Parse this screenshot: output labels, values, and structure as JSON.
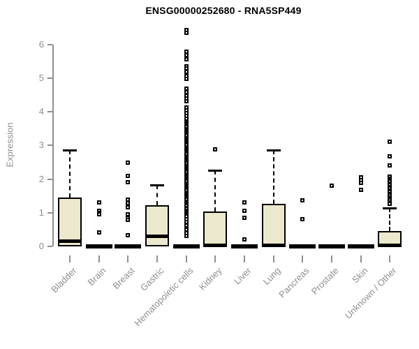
{
  "title": "ENSG00000252680 - RNA5SP449",
  "y_axis": {
    "label": "Expression",
    "ticks": [
      0,
      1,
      2,
      3,
      4,
      5,
      6
    ],
    "min": 0,
    "max": 6
  },
  "colors": {
    "box_fill": "#ece8cd",
    "box_border": "#000000",
    "axis": "#8f8f8f",
    "title": "#000000",
    "background": "#ffffff"
  },
  "chart_data": {
    "type": "boxplot",
    "title": "ENSG00000252680 - RNA5SP449",
    "xlabel": "",
    "ylabel": "Expression",
    "ylim": [
      0,
      6.5
    ],
    "grid": false,
    "categories": [
      "Bladder",
      "Brain",
      "Breast",
      "Gastric",
      "Hematopoietic cells",
      "Kidney",
      "Liver",
      "Lung",
      "Pancreas",
      "Prostate",
      "Skin",
      "Unknown / Other"
    ],
    "series": [
      {
        "name": "Bladder",
        "collapsed": false,
        "q1": 0,
        "median": 0.15,
        "q3": 1.45,
        "whisker_low": 0,
        "whisker_high": 2.85,
        "outliers": []
      },
      {
        "name": "Brain",
        "collapsed": true,
        "q1": 0,
        "median": 0,
        "q3": 0,
        "whisker_low": 0,
        "whisker_high": 0,
        "outliers": [
          1.3,
          1.05,
          1.0,
          0.95,
          0.42
        ]
      },
      {
        "name": "Breast",
        "collapsed": true,
        "q1": 0,
        "median": 0,
        "q3": 0,
        "whisker_low": 0,
        "whisker_high": 0,
        "outliers": [
          2.48,
          2.1,
          1.9,
          1.38,
          1.28,
          1.16,
          0.95,
          0.86,
          0.78,
          0.34
        ]
      },
      {
        "name": "Gastric",
        "collapsed": false,
        "q1": 0,
        "median": 0.3,
        "q3": 1.22,
        "whisker_low": 0,
        "whisker_high": 1.83,
        "outliers": []
      },
      {
        "name": "Hematopoietic cells",
        "collapsed": true,
        "q1": 0,
        "median": 0,
        "q3": 0,
        "whisker_low": 0,
        "whisker_high": 0,
        "outliers": [
          6.42,
          6.35,
          5.78,
          5.68,
          5.55,
          5.35,
          5.28,
          5.18,
          5.05,
          4.98,
          4.68,
          4.58,
          4.48,
          4.4,
          4.32,
          4.12,
          4.05,
          3.95,
          3.88,
          3.8,
          3.72,
          3.67,
          3.63,
          3.58,
          3.54,
          3.49,
          3.45,
          3.4,
          3.36,
          3.31,
          3.27,
          3.22,
          3.18,
          3.13,
          3.09,
          3.04,
          3.0,
          2.95,
          2.91,
          2.86,
          2.82,
          2.77,
          2.73,
          2.68,
          2.64,
          2.59,
          2.55,
          2.5,
          2.46,
          2.41,
          2.37,
          2.32,
          2.28,
          2.23,
          2.19,
          2.14,
          2.1,
          2.05,
          2.01,
          1.96,
          1.92,
          1.87,
          1.83,
          1.78,
          1.74,
          1.69,
          1.65,
          1.6,
          1.56,
          1.51,
          1.47,
          1.42,
          1.38,
          1.33,
          1.29,
          1.24,
          1.2,
          1.15,
          1.11,
          1.06,
          1.02,
          0.97,
          0.93,
          0.9,
          0.8,
          0.72,
          0.62,
          0.5,
          0.4,
          0.32
        ]
      },
      {
        "name": "Kidney",
        "collapsed": false,
        "q1": 0,
        "median": 0.03,
        "q3": 1.03,
        "whisker_low": 0,
        "whisker_high": 2.25,
        "outliers": [
          2.88
        ]
      },
      {
        "name": "Liver",
        "collapsed": true,
        "q1": 0,
        "median": 0,
        "q3": 0,
        "whisker_low": 0,
        "whisker_high": 0,
        "outliers": [
          1.3,
          1.05,
          0.85,
          0.2
        ]
      },
      {
        "name": "Lung",
        "collapsed": false,
        "q1": 0,
        "median": 0.04,
        "q3": 1.27,
        "whisker_low": 0,
        "whisker_high": 2.85,
        "outliers": []
      },
      {
        "name": "Pancreas",
        "collapsed": true,
        "q1": 0,
        "median": 0,
        "q3": 0,
        "whisker_low": 0,
        "whisker_high": 0,
        "outliers": [
          1.37,
          0.8
        ]
      },
      {
        "name": "Prostate",
        "collapsed": true,
        "q1": 0,
        "median": 0,
        "q3": 0,
        "whisker_low": 0,
        "whisker_high": 0,
        "outliers": [
          1.8
        ]
      },
      {
        "name": "Skin",
        "collapsed": true,
        "q1": 0,
        "median": 0,
        "q3": 0,
        "whisker_low": 0,
        "whisker_high": 0,
        "outliers": [
          2.05,
          1.97,
          1.88,
          1.68
        ]
      },
      {
        "name": "Unknown / Other",
        "collapsed": false,
        "q1": 0,
        "median": 0.03,
        "q3": 0.45,
        "whisker_low": 0,
        "whisker_high": 1.13,
        "outliers": [
          3.1,
          2.68,
          2.4,
          2.08,
          2.02,
          1.97,
          1.92,
          1.87,
          1.82,
          1.77,
          1.72,
          1.66,
          1.61,
          1.56,
          1.51,
          1.46,
          1.41,
          1.36,
          1.31,
          1.26
        ]
      }
    ]
  }
}
